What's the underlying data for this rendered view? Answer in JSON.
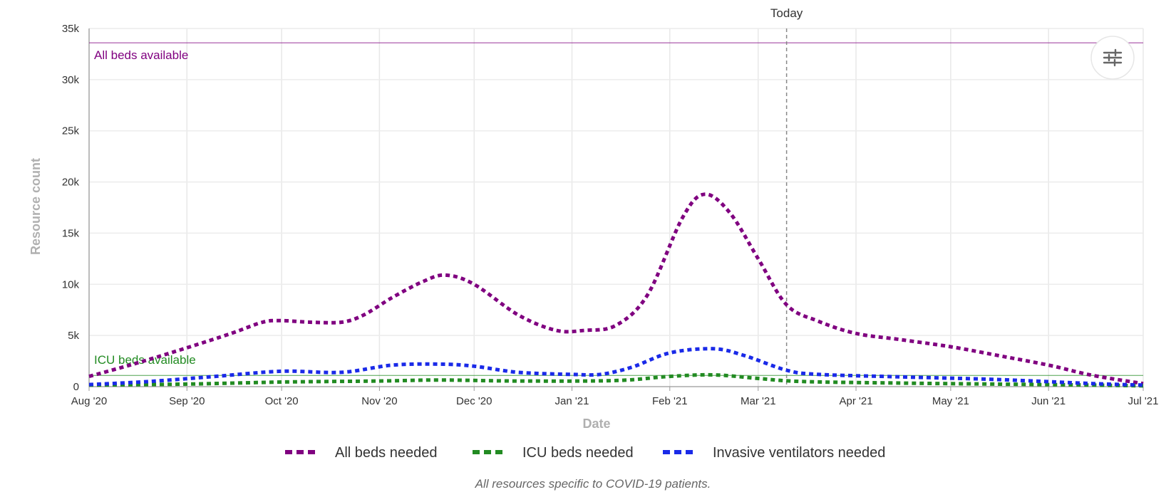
{
  "chart_data": {
    "type": "line",
    "title": "",
    "xlabel": "Date",
    "ylabel": "Resource count",
    "caption": "All resources specific to COVID-19 patients.",
    "x_ticks": [
      "Aug '20",
      "Sep '20",
      "Oct '20",
      "Nov '20",
      "Dec '20",
      "Jan '21",
      "Feb '21",
      "Mar '21",
      "Apr '21",
      "May '21",
      "Jun '21",
      "Jul '21"
    ],
    "y_ticks": [
      "0",
      "5k",
      "10k",
      "15k",
      "20k",
      "25k",
      "30k",
      "35k"
    ],
    "ylim": [
      0,
      35000
    ],
    "xlim": [
      "2020-08-01",
      "2021-07-01"
    ],
    "grid": true,
    "legend": "bottom-center",
    "today": {
      "date": "2021-03-10",
      "label": "Today"
    },
    "reference_lines": [
      {
        "label": "All beds available",
        "value": 33600,
        "color": "#800080"
      },
      {
        "label": "ICU beds available",
        "value": 1100,
        "color": "#228B22"
      }
    ],
    "series": [
      {
        "name": "All beds needed",
        "color": "#800080",
        "points": [
          [
            "2020-08-01",
            1000
          ],
          [
            "2020-08-15",
            2200
          ],
          [
            "2020-09-01",
            3800
          ],
          [
            "2020-09-15",
            5200
          ],
          [
            "2020-09-25",
            6300
          ],
          [
            "2020-10-01",
            6450
          ],
          [
            "2020-10-10",
            6300
          ],
          [
            "2020-10-20",
            6300
          ],
          [
            "2020-10-27",
            7000
          ],
          [
            "2020-11-05",
            8700
          ],
          [
            "2020-11-15",
            10300
          ],
          [
            "2020-11-22",
            10900
          ],
          [
            "2020-12-01",
            10000
          ],
          [
            "2020-12-15",
            7000
          ],
          [
            "2020-12-27",
            5500
          ],
          [
            "2021-01-05",
            5500
          ],
          [
            "2021-01-15",
            6000
          ],
          [
            "2021-01-25",
            9000
          ],
          [
            "2021-02-05",
            16500
          ],
          [
            "2021-02-12",
            18800
          ],
          [
            "2021-02-20",
            17000
          ],
          [
            "2021-03-01",
            12500
          ],
          [
            "2021-03-10",
            8000
          ],
          [
            "2021-03-20",
            6400
          ],
          [
            "2021-04-01",
            5200
          ],
          [
            "2021-04-15",
            4600
          ],
          [
            "2021-05-01",
            3900
          ],
          [
            "2021-05-15",
            3100
          ],
          [
            "2021-06-01",
            2100
          ],
          [
            "2021-06-15",
            1100
          ],
          [
            "2021-07-01",
            300
          ]
        ]
      },
      {
        "name": "ICU beds needed",
        "color": "#228B22",
        "points": [
          [
            "2020-08-01",
            150
          ],
          [
            "2020-09-01",
            250
          ],
          [
            "2020-10-01",
            450
          ],
          [
            "2020-11-01",
            550
          ],
          [
            "2020-11-20",
            650
          ],
          [
            "2020-12-15",
            550
          ],
          [
            "2021-01-15",
            600
          ],
          [
            "2021-02-01",
            1000
          ],
          [
            "2021-02-15",
            1150
          ],
          [
            "2021-03-01",
            800
          ],
          [
            "2021-03-15",
            500
          ],
          [
            "2021-04-15",
            350
          ],
          [
            "2021-05-15",
            250
          ],
          [
            "2021-06-15",
            150
          ],
          [
            "2021-07-01",
            80
          ]
        ]
      },
      {
        "name": "Invasive ventilators needed",
        "color": "#1a2ae8",
        "points": [
          [
            "2020-08-01",
            200
          ],
          [
            "2020-08-20",
            500
          ],
          [
            "2020-09-10",
            1000
          ],
          [
            "2020-10-01",
            1500
          ],
          [
            "2020-10-20",
            1400
          ],
          [
            "2020-11-05",
            2100
          ],
          [
            "2020-11-20",
            2200
          ],
          [
            "2020-12-01",
            2000
          ],
          [
            "2020-12-15",
            1400
          ],
          [
            "2021-01-01",
            1200
          ],
          [
            "2021-01-10",
            1200
          ],
          [
            "2021-01-20",
            1900
          ],
          [
            "2021-02-01",
            3300
          ],
          [
            "2021-02-15",
            3700
          ],
          [
            "2021-02-25",
            3000
          ],
          [
            "2021-03-10",
            1600
          ],
          [
            "2021-03-20",
            1200
          ],
          [
            "2021-04-15",
            950
          ],
          [
            "2021-05-15",
            700
          ],
          [
            "2021-06-15",
            300
          ],
          [
            "2021-07-01",
            150
          ]
        ]
      }
    ]
  }
}
